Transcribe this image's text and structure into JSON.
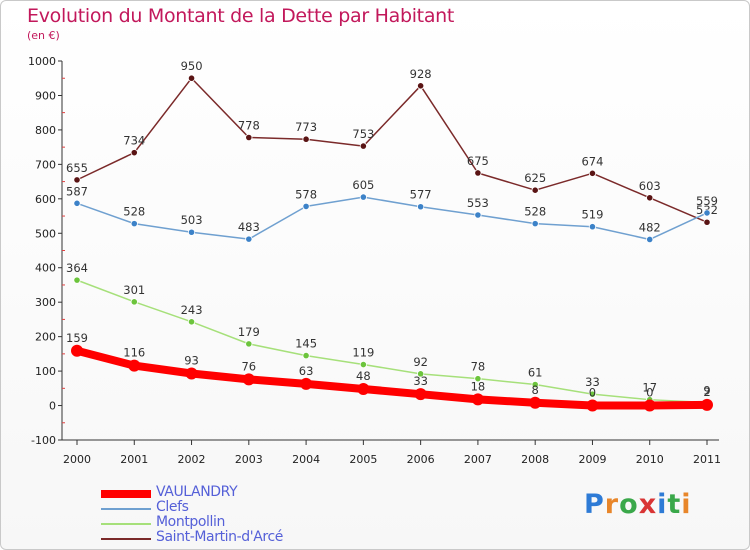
{
  "title": "Evolution du Montant de la Dette par Habitant",
  "subtitle": "(en €)",
  "brand": {
    "text": "Proxiti",
    "colors": [
      "#2e7bd6",
      "#e8862a",
      "#3aa84a",
      "#d93434",
      "#2e7bd6",
      "#3aa84a",
      "#e8862a"
    ]
  },
  "chart_data": {
    "type": "line",
    "title": "Evolution du Montant de la Dette par Habitant",
    "ylabel": "(en €)",
    "ylim": [
      -100,
      1000
    ],
    "yticks": [
      -100,
      0,
      100,
      200,
      300,
      400,
      500,
      600,
      700,
      800,
      900,
      1000
    ],
    "x": [
      "2000",
      "2001",
      "2002",
      "2003",
      "2004",
      "2005",
      "2006",
      "2007",
      "2008",
      "2009",
      "2010",
      "2011"
    ],
    "grid": false,
    "legend_position": "bottom-left",
    "series": [
      {
        "name": "Saint-Martin-d'Arcé",
        "color": "#7b2a2a",
        "point_color": "#5a1414",
        "values": [
          655,
          734,
          950,
          778,
          773,
          753,
          928,
          675,
          625,
          674,
          603,
          532
        ],
        "labels": [
          "655",
          "734",
          "950",
          "778",
          "773",
          "753",
          "928",
          "675",
          "625",
          "674",
          "603",
          "532"
        ]
      },
      {
        "name": "Clefs",
        "color": "#6fa0d0",
        "point_color": "#3c82c8",
        "values": [
          587,
          528,
          503,
          483,
          578,
          605,
          577,
          553,
          528,
          519,
          482,
          559
        ],
        "labels": [
          "587",
          "528",
          "503",
          "483",
          "578",
          "605",
          "577",
          "553",
          "528",
          "519",
          "482",
          "559"
        ]
      },
      {
        "name": "Montpollin",
        "color": "#a6e07a",
        "point_color": "#6cc43c",
        "values": [
          364,
          301,
          243,
          179,
          145,
          119,
          92,
          78,
          61,
          33,
          17,
          9
        ],
        "labels": [
          "364",
          "301",
          "243",
          "179",
          "145",
          "119",
          "92",
          "78",
          "61",
          "33",
          "17",
          "9"
        ]
      },
      {
        "name": "VAULANDRY",
        "color": "#ff0000",
        "point_color": "#ff0000",
        "values": [
          159,
          116,
          93,
          76,
          63,
          48,
          33,
          18,
          8,
          0,
          0,
          2
        ],
        "labels": [
          "159",
          "116",
          "93",
          "76",
          "63",
          "48",
          "33",
          "18",
          "8",
          "0",
          "0",
          "2"
        ]
      }
    ],
    "legend_order": [
      "VAULANDRY",
      "Clefs",
      "Montpollin",
      "Saint-Martin-d'Arcé"
    ]
  }
}
